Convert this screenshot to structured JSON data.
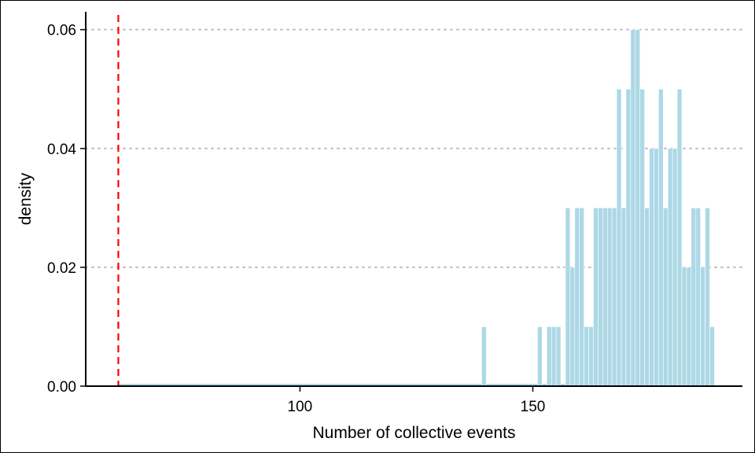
{
  "chart_data": {
    "type": "bar",
    "title": "",
    "xlabel": "Number of collective events",
    "ylabel": "density",
    "xlim": [
      54,
      195
    ],
    "ylim": [
      0,
      0.063
    ],
    "xticks": [
      100,
      150
    ],
    "xtick_labels": [
      "100",
      "150"
    ],
    "yticks": [
      0,
      0.02,
      0.04,
      0.06
    ],
    "ytick_labels": [
      "0.00",
      "0.02",
      "0.04",
      "0.06"
    ],
    "grid": "horizontal dotted",
    "bin_width": 1,
    "bar_color": "#add8e6",
    "reference_line": {
      "x": 61,
      "style": "dashed",
      "color": "#ff0000"
    },
    "bins": [
      {
        "x": 139.5,
        "density": 0.01
      },
      {
        "x": 151.5,
        "density": 0.01
      },
      {
        "x": 153.5,
        "density": 0.01
      },
      {
        "x": 154.5,
        "density": 0.01
      },
      {
        "x": 155.5,
        "density": 0.01
      },
      {
        "x": 157.5,
        "density": 0.03
      },
      {
        "x": 158.5,
        "density": 0.02
      },
      {
        "x": 159.5,
        "density": 0.03
      },
      {
        "x": 160.5,
        "density": 0.03
      },
      {
        "x": 161.5,
        "density": 0.01
      },
      {
        "x": 162.5,
        "density": 0.01
      },
      {
        "x": 163.5,
        "density": 0.03
      },
      {
        "x": 164.5,
        "density": 0.03
      },
      {
        "x": 165.5,
        "density": 0.03
      },
      {
        "x": 166.5,
        "density": 0.03
      },
      {
        "x": 167.5,
        "density": 0.03
      },
      {
        "x": 168.5,
        "density": 0.05
      },
      {
        "x": 169.5,
        "density": 0.03
      },
      {
        "x": 170.5,
        "density": 0.05
      },
      {
        "x": 171.5,
        "density": 0.06
      },
      {
        "x": 172.5,
        "density": 0.06
      },
      {
        "x": 173.5,
        "density": 0.05
      },
      {
        "x": 174.5,
        "density": 0.03
      },
      {
        "x": 175.5,
        "density": 0.04
      },
      {
        "x": 176.5,
        "density": 0.04
      },
      {
        "x": 177.5,
        "density": 0.05
      },
      {
        "x": 178.5,
        "density": 0.03
      },
      {
        "x": 179.5,
        "density": 0.04
      },
      {
        "x": 180.5,
        "density": 0.04
      },
      {
        "x": 181.5,
        "density": 0.05
      },
      {
        "x": 182.5,
        "density": 0.02
      },
      {
        "x": 183.5,
        "density": 0.02
      },
      {
        "x": 184.5,
        "density": 0.03
      },
      {
        "x": 185.5,
        "density": 0.03
      },
      {
        "x": 186.5,
        "density": 0.02
      },
      {
        "x": 187.5,
        "density": 0.03
      },
      {
        "x": 188.5,
        "density": 0.01
      }
    ]
  }
}
